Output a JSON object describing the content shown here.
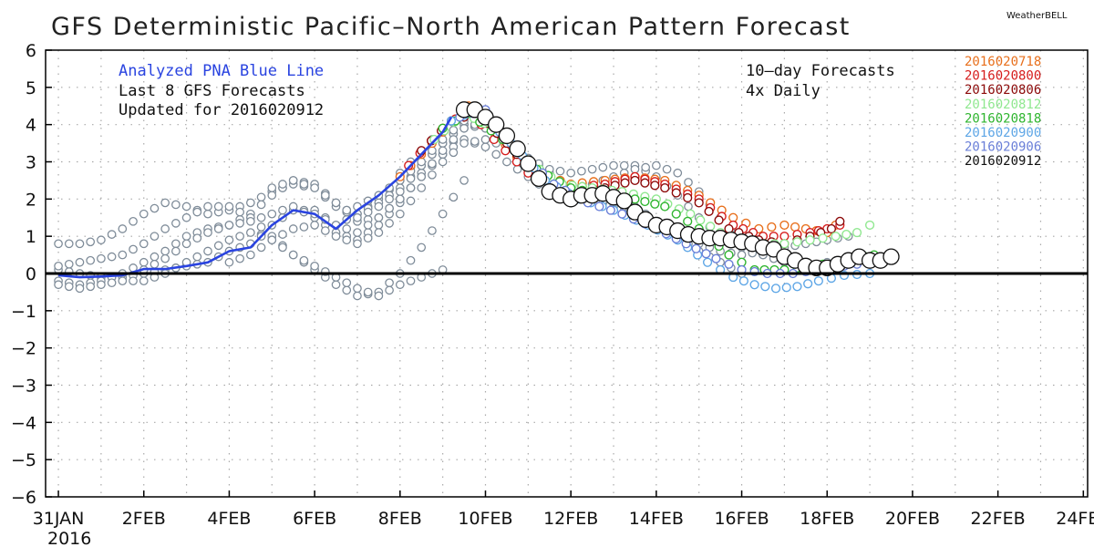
{
  "title": "GFS Deterministic Pacific–North American Pattern Forecast",
  "brand": "WeatherBELL",
  "annotations": {
    "analyzed": "Analyzed PNA Blue Line",
    "last8": "Last 8 GFS Forecasts",
    "updated": "Updated for 2016020912",
    "forecasts": "10–day Forecasts",
    "daily": "4x Daily"
  },
  "colors": {
    "analyzed": "#2a44e0",
    "ensemble": "#7f8c99",
    "grid": "#a9a9a9",
    "zero_line": "#000000"
  },
  "chart_data": {
    "type": "line",
    "title": "GFS Deterministic Pacific–North American Pattern Forecast",
    "xlabel": "",
    "ylabel": "",
    "x_start": "31JAN",
    "x_start_year": "2016",
    "x_range_days": [
      -0.3,
      24.1
    ],
    "ylim": [
      -6,
      6
    ],
    "y_ticks": [
      6,
      5,
      4,
      3,
      2,
      1,
      0,
      -1,
      -2,
      -3,
      -4,
      -5,
      -6
    ],
    "x_tick_labels": [
      {
        "day": 0,
        "label": "31JAN"
      },
      {
        "day": 2,
        "label": "2FEB"
      },
      {
        "day": 4,
        "label": "4FEB"
      },
      {
        "day": 6,
        "label": "6FEB"
      },
      {
        "day": 8,
        "label": "8FEB"
      },
      {
        "day": 10,
        "label": "10FEB"
      },
      {
        "day": 12,
        "label": "12FEB"
      },
      {
        "day": 14,
        "label": "14FEB"
      },
      {
        "day": 16,
        "label": "16FEB"
      },
      {
        "day": 18,
        "label": "18FEB"
      },
      {
        "day": 20,
        "label": "20FEB"
      },
      {
        "day": 22,
        "label": "22FEB"
      },
      {
        "day": 24,
        "label": "24FEB"
      }
    ],
    "grid": true,
    "legend_position": "top-right",
    "analyzed": {
      "name": "Analyzed PNA Blue Line",
      "color": "#2a44e0",
      "x": [
        0,
        0.5,
        1,
        1.5,
        2,
        2.5,
        3,
        3.5,
        4,
        4.5,
        5,
        5.5,
        6,
        6.5,
        7,
        7.5,
        8,
        8.5,
        9,
        9.2
      ],
      "y": [
        -0.05,
        -0.1,
        -0.08,
        -0.05,
        0.12,
        0.12,
        0.2,
        0.3,
        0.6,
        0.7,
        1.3,
        1.7,
        1.6,
        1.2,
        1.7,
        2.1,
        2.6,
        3.2,
        3.8,
        4.2
      ]
    },
    "forecasts": [
      {
        "name": "2016020718",
        "color": "#e8701d",
        "x": [
          8.0,
          9.0,
          9.6,
          10.2,
          11.0,
          12.0,
          12.8,
          13.5,
          14.2,
          15.0,
          15.8,
          16.4,
          17.0,
          17.5,
          18.0,
          18.2
        ],
        "y": [
          2.6,
          3.8,
          4.5,
          3.8,
          2.8,
          2.4,
          2.5,
          2.6,
          2.5,
          2.1,
          1.5,
          1.2,
          1.3,
          1.2,
          1.1,
          1.3
        ]
      },
      {
        "name": "2016020800",
        "color": "#d61d1d",
        "x": [
          8.2,
          9.0,
          9.6,
          10.2,
          11.0,
          12.0,
          12.8,
          13.5,
          14.2,
          15.0,
          15.8,
          16.5,
          17.0,
          17.6,
          18.0,
          18.3
        ],
        "y": [
          2.9,
          3.9,
          4.4,
          3.6,
          2.7,
          2.3,
          2.4,
          2.6,
          2.4,
          2.0,
          1.3,
          1.0,
          1.0,
          1.1,
          1.2,
          1.3
        ]
      },
      {
        "name": "2016020806",
        "color": "#8c0a0a",
        "x": [
          8.5,
          9.2,
          9.8,
          10.5,
          11.2,
          12.0,
          12.8,
          13.5,
          14.2,
          15.0,
          15.7,
          16.4,
          17.0,
          17.6,
          18.1,
          18.3
        ],
        "y": [
          3.3,
          4.1,
          4.3,
          3.5,
          2.6,
          2.2,
          2.3,
          2.5,
          2.3,
          1.9,
          1.2,
          0.9,
          0.8,
          1.0,
          1.2,
          1.4
        ]
      },
      {
        "name": "2016020812",
        "color": "#90e890",
        "x": [
          8.8,
          9.5,
          10.2,
          11.0,
          11.8,
          12.5,
          13.2,
          14.0,
          14.8,
          15.5,
          16.3,
          17.0,
          17.6,
          18.2,
          18.7,
          19.0
        ],
        "y": [
          3.6,
          4.3,
          3.9,
          3.0,
          2.4,
          2.3,
          2.2,
          2.0,
          1.6,
          1.1,
          0.8,
          0.8,
          0.9,
          1.0,
          1.1,
          1.3
        ]
      },
      {
        "name": "2016020818",
        "color": "#2fb52f",
        "x": [
          9.0,
          9.6,
          10.4,
          11.2,
          12.0,
          12.8,
          13.5,
          14.2,
          15.0,
          15.7,
          16.3,
          17.0,
          17.6,
          18.2,
          18.7,
          19.1
        ],
        "y": [
          3.9,
          4.3,
          3.6,
          2.8,
          2.3,
          2.1,
          2.0,
          1.8,
          1.2,
          0.5,
          0.1,
          0.1,
          0.2,
          0.3,
          0.4,
          0.5
        ]
      },
      {
        "name": "2016020900",
        "color": "#5ea6e6",
        "x": [
          9.2,
          9.8,
          10.6,
          11.4,
          12.2,
          13.0,
          13.8,
          14.5,
          15.2,
          15.8,
          16.3,
          16.8,
          17.3,
          17.8,
          18.4,
          19.0
        ],
        "y": [
          4.1,
          4.4,
          3.5,
          2.5,
          2.0,
          1.7,
          1.3,
          0.9,
          0.3,
          -0.1,
          -0.3,
          -0.4,
          -0.35,
          -0.2,
          -0.05,
          0.0
        ]
      },
      {
        "name": "2016020906",
        "color": "#6a7fd8",
        "x": [
          9.4,
          10.0,
          10.8,
          11.6,
          12.4,
          13.2,
          14.0,
          14.7,
          15.4,
          16.0,
          16.6,
          17.2,
          17.8,
          18.4,
          19.0,
          19.3
        ],
        "y": [
          4.2,
          4.4,
          3.3,
          2.4,
          1.9,
          1.6,
          1.2,
          0.8,
          0.4,
          0.1,
          0.0,
          0.0,
          0.1,
          0.2,
          0.3,
          0.4
        ]
      },
      {
        "name": "2016020912",
        "color": "#111111",
        "x": [
          9.5,
          9.75,
          10.0,
          10.25,
          10.5,
          10.75,
          11.0,
          11.25,
          11.5,
          11.75,
          12.0,
          12.25,
          12.5,
          12.75,
          13.0,
          13.25,
          13.5,
          13.75,
          14.0,
          14.25,
          14.5,
          14.75,
          15.0,
          15.25,
          15.5,
          15.75,
          16.0,
          16.25,
          16.5,
          16.75,
          17.0,
          17.25,
          17.5,
          17.75,
          18.0,
          18.25,
          18.5,
          18.75,
          19.0,
          19.25,
          19.5
        ],
        "y": [
          4.4,
          4.4,
          4.2,
          4.0,
          3.7,
          3.35,
          2.95,
          2.55,
          2.2,
          2.1,
          2.0,
          2.1,
          2.1,
          2.15,
          2.05,
          1.95,
          1.65,
          1.45,
          1.3,
          1.25,
          1.15,
          1.05,
          1.0,
          0.95,
          0.95,
          0.9,
          0.85,
          0.8,
          0.7,
          0.65,
          0.45,
          0.35,
          0.2,
          0.15,
          0.15,
          0.25,
          0.35,
          0.45,
          0.35,
          0.35,
          0.45
        ]
      }
    ],
    "ensemble_spaghetti": {
      "name": "Last 8 GFS Forecasts (grey)",
      "color": "#7f8c99",
      "tracks": [
        {
          "x": [
            0,
            0.5,
            1,
            1.5,
            2,
            2.5,
            3,
            3.5,
            4,
            4.5,
            5,
            5.5,
            6,
            6.5,
            7,
            7.5,
            8,
            8.5,
            9,
            9.5
          ],
          "y": [
            0.1,
            0.0,
            -0.1,
            -0.1,
            0.0,
            0.1,
            0.2,
            0.3,
            0.6,
            0.8,
            1.3,
            1.7,
            1.7,
            1.3,
            1.6,
            2.0,
            2.5,
            3.2,
            3.8,
            4.3
          ]
        },
        {
          "x": [
            0,
            0.5,
            1,
            1.5,
            2,
            2.5,
            3,
            3.5,
            4,
            4.5,
            5,
            5.5,
            6,
            6.5,
            7,
            7.5,
            8,
            8.5,
            9,
            9.5
          ],
          "y": [
            0.8,
            0.8,
            0.9,
            1.2,
            1.6,
            1.9,
            1.8,
            1.6,
            1.7,
            1.9,
            2.2,
            2.4,
            2.3,
            1.8,
            1.6,
            1.9,
            2.3,
            2.9,
            3.5,
            4.0
          ]
        },
        {
          "x": [
            0,
            0.5,
            1,
            1.5,
            2,
            2.5,
            3,
            3.5,
            4,
            4.5,
            5,
            5.5,
            6,
            6.5,
            7,
            7.5,
            8,
            8.5,
            9,
            9.5
          ],
          "y": [
            -0.2,
            -0.3,
            -0.2,
            0.0,
            0.3,
            0.6,
            1.0,
            1.2,
            1.3,
            1.6,
            2.1,
            2.5,
            2.4,
            1.9,
            1.4,
            1.5,
            2.0,
            2.6,
            3.2,
            3.9
          ]
        },
        {
          "x": [
            0,
            0.5,
            1,
            1.5,
            2,
            2.5,
            3,
            3.5,
            4,
            4.5,
            5,
            5.5,
            6,
            6.5,
            7,
            7.5,
            8,
            8.5,
            9,
            9.5
          ],
          "y": [
            0.2,
            0.3,
            0.4,
            0.5,
            0.8,
            1.2,
            1.5,
            1.8,
            1.8,
            1.5,
            1.0,
            0.5,
            0.1,
            -0.3,
            -0.6,
            -0.5,
            0.0,
            0.7,
            1.6,
            2.5
          ]
        },
        {
          "x": [
            0,
            0.5,
            1,
            1.5,
            2,
            2.5,
            3,
            3.5,
            4,
            4.5,
            5,
            5.5,
            6,
            6.5,
            7,
            7.5,
            8,
            8.5,
            9
          ],
          "y": [
            -0.3,
            -0.4,
            -0.3,
            -0.2,
            -0.2,
            0.0,
            0.3,
            0.6,
            0.9,
            1.1,
            0.9,
            0.5,
            0.2,
            -0.1,
            -0.4,
            -0.6,
            -0.3,
            -0.1,
            0.1
          ]
        },
        {
          "x": [
            2,
            2.5,
            3,
            3.5,
            4,
            4.5,
            5,
            5.5,
            6,
            6.5,
            7,
            7.5,
            8,
            8.5,
            9,
            9.5,
            10,
            10.5,
            11,
            11.5,
            12
          ],
          "y": [
            0.1,
            0.4,
            0.8,
            1.1,
            1.3,
            1.4,
            1.6,
            1.8,
            1.5,
            1.1,
            0.9,
            1.3,
            1.9,
            2.7,
            3.2,
            3.6,
            3.4,
            3.0,
            2.6,
            2.2,
            1.9
          ]
        },
        {
          "x": [
            4,
            4.5,
            5,
            5.5,
            6,
            6.5,
            7,
            7.5,
            8,
            8.5,
            9,
            9.5,
            10,
            10.5,
            11,
            11.5,
            12,
            12.5,
            13,
            13.5,
            14
          ],
          "y": [
            0.3,
            0.5,
            0.9,
            1.2,
            1.3,
            1.0,
            0.8,
            1.1,
            1.6,
            2.3,
            3.0,
            3.5,
            3.6,
            3.4,
            3.1,
            2.7,
            2.3,
            2.0,
            1.8,
            1.6,
            1.4
          ]
        },
        {
          "x": [
            5,
            5.5,
            6,
            6.5,
            7,
            7.5,
            8,
            8.5,
            9,
            9.5,
            10,
            10.5,
            11,
            11.5,
            12,
            12.5,
            13,
            13.5,
            14,
            14.5,
            15,
            15.5,
            16
          ],
          "y": [
            2.3,
            2.5,
            2.3,
            1.9,
            1.5,
            1.8,
            2.2,
            2.9,
            3.5,
            4.0,
            3.9,
            3.4,
            2.9,
            2.5,
            2.2,
            2.1,
            2.0,
            1.8,
            1.4,
            1.0,
            0.6,
            0.3,
            0.0
          ]
        },
        {
          "x": [
            6,
            6.5,
            7,
            7.5,
            8,
            8.5,
            9,
            9.5,
            10,
            10.5,
            11,
            11.5,
            12,
            12.5,
            13,
            13.5,
            14,
            14.5,
            15,
            15.5,
            16,
            16.5,
            17
          ],
          "y": [
            1.6,
            1.3,
            1.1,
            1.5,
            2.0,
            2.6,
            3.3,
            3.9,
            4.0,
            3.6,
            3.1,
            2.8,
            2.7,
            2.8,
            2.9,
            2.9,
            2.6,
            2.1,
            1.5,
            1.0,
            0.7,
            0.5,
            0.5
          ]
        },
        {
          "x": [
            7,
            7.5,
            8,
            8.5,
            9,
            9.5,
            10,
            10.5,
            11,
            11.5,
            12,
            12.5,
            13,
            13.5,
            14,
            14.5,
            15,
            15.5,
            16,
            16.5,
            17,
            17.5,
            18
          ],
          "y": [
            1.8,
            2.1,
            2.5,
            3.0,
            3.6,
            4.1,
            3.9,
            3.4,
            2.9,
            2.5,
            2.3,
            2.4,
            2.6,
            2.8,
            2.9,
            2.7,
            2.2,
            1.5,
            0.9,
            0.5,
            0.3,
            0.2,
            0.3
          ]
        },
        {
          "x": [
            8,
            8.5,
            9,
            9.5,
            10,
            10.5,
            11,
            11.5,
            12,
            12.5,
            13,
            13.5,
            14,
            14.5,
            15,
            15.5,
            16,
            16.5,
            17,
            17.5,
            18,
            18.5
          ],
          "y": [
            2.7,
            3.3,
            3.9,
            4.3,
            4.1,
            3.5,
            2.9,
            2.4,
            2.1,
            2.0,
            1.9,
            1.7,
            1.4,
            1.1,
            0.8,
            0.6,
            0.5,
            0.6,
            0.7,
            0.8,
            0.9,
            1.0
          ]
        }
      ]
    }
  }
}
